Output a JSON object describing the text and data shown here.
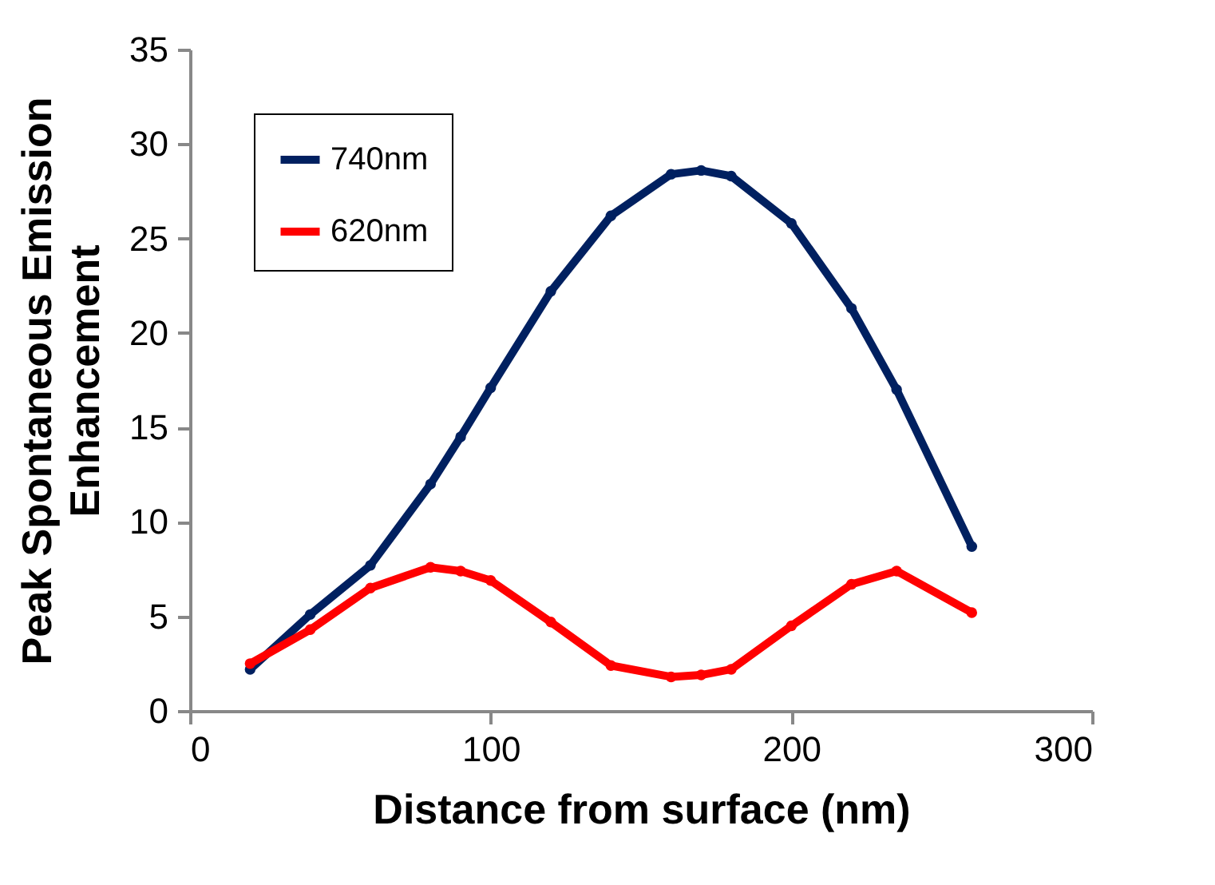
{
  "chart_data": {
    "type": "line",
    "xlabel": "Distance from surface (nm)",
    "ylabel": "Peak Spontaneous Emission\nEnhancement",
    "x": [
      20,
      40,
      60,
      80,
      90,
      100,
      120,
      140,
      160,
      170,
      180,
      200,
      220,
      235,
      260
    ],
    "series": [
      {
        "name": "740nm",
        "color": "#002060",
        "values": [
          2.2,
          5.1,
          7.7,
          12,
          14.5,
          17.1,
          22.2,
          26.2,
          28.4,
          28.6,
          28.3,
          25.8,
          21.3,
          17,
          8.7
        ]
      },
      {
        "name": "620nm",
        "color": "#ff0000",
        "values": [
          2.5,
          4.3,
          6.5,
          7.6,
          7.4,
          6.9,
          4.7,
          2.4,
          1.8,
          1.9,
          2.2,
          4.5,
          6.7,
          7.4,
          5.2
        ]
      }
    ],
    "xlim": [
      0,
      300
    ],
    "xticks": [
      0,
      100,
      200,
      300
    ],
    "ylim": [
      0,
      35
    ],
    "yticks": [
      0,
      5,
      10,
      15,
      20,
      25,
      30,
      35
    ],
    "grid": false,
    "legend": "top left",
    "marker": "circle",
    "line_style": "solid"
  }
}
